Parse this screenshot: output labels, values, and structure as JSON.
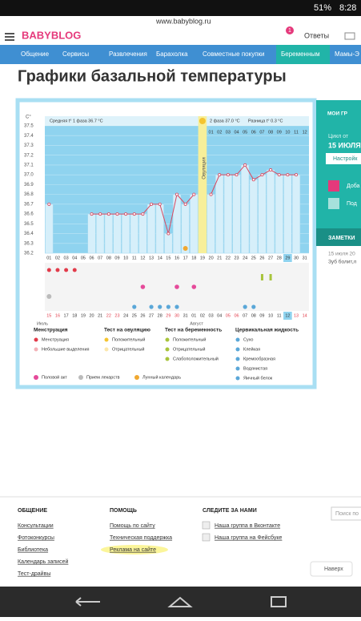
{
  "status_bar": {
    "battery": "51%",
    "time": "8:28"
  },
  "url": "www.babyblog.ru",
  "header": {
    "logo": "BABYBLOG",
    "badge": "1",
    "answers": "Ответы"
  },
  "nav": [
    "Общение",
    "Сервисы",
    "Развлечения",
    "Барахолка",
    "Совместные покупки",
    "Беременным",
    "Мамы-Э"
  ],
  "page_title": "Графики базальной температуры",
  "chart": {
    "y_unit": "C°",
    "phase1": "Средняя t° 1 фаза 36.7 °C",
    "ovulation": "Овуляция",
    "phase2": "2 фаза 37.0 °C",
    "difference": "Разница t° 0.3 °C",
    "phase2_days": [
      "01",
      "02",
      "03",
      "04",
      "05",
      "06",
      "07",
      "08",
      "09",
      "10",
      "11",
      "12"
    ],
    "days": [
      "01",
      "02",
      "03",
      "04",
      "05",
      "06",
      "07",
      "08",
      "09",
      "10",
      "11",
      "12",
      "13",
      "14",
      "15",
      "16",
      "17",
      "18",
      "19",
      "20",
      "21",
      "22",
      "23",
      "24",
      "25",
      "26",
      "27",
      "28",
      "29",
      "30",
      "31"
    ],
    "dates": [
      "15",
      "16",
      "17",
      "18",
      "19",
      "20",
      "21",
      "22",
      "23",
      "24",
      "25",
      "26",
      "27",
      "28",
      "29",
      "30",
      "31",
      "01",
      "02",
      "03",
      "04",
      "05",
      "06",
      "07",
      "08",
      "09",
      "10",
      "11",
      "12",
      "13",
      "14"
    ],
    "months": [
      "Июль",
      "Август"
    ],
    "ylim": [
      36.2,
      37.5
    ],
    "yticks": [
      36.2,
      36.3,
      36.4,
      36.5,
      36.6,
      36.7,
      36.8,
      36.9,
      {
        "value": 37,
        "label": "37.0"
      },
      37.1,
      37.2,
      37.3,
      37.4,
      37.5
    ],
    "temperatures": [
      36.7,
      null,
      null,
      null,
      null,
      36.6,
      36.6,
      36.6,
      36.6,
      36.6,
      36.6,
      36.6,
      36.7,
      36.7,
      36.4,
      36.8,
      36.7,
      36.8,
      null,
      36.8,
      37.0,
      37.0,
      37.0,
      37.1,
      36.95,
      37.0,
      37.05,
      37.0,
      37.0,
      37.0,
      null
    ]
  },
  "legend": {
    "columns": [
      {
        "title": "Менструация",
        "items": [
          "Менструация",
          "Небольшие выделения"
        ]
      },
      {
        "title": "Тест на овуляцию",
        "items": [
          "Положительный",
          "Отрицательный"
        ]
      },
      {
        "title": "Тест на беременность",
        "items": [
          "Положительный",
          "Отрицательный",
          "Слабоположительный"
        ]
      },
      {
        "title": "Цервикальная жидкость",
        "items": [
          "Сухо",
          "Клейкая",
          "Кремообразная",
          "Водянистая",
          "Яичный белок"
        ]
      }
    ],
    "bottom": [
      "Половой акт",
      "Прием лекарств",
      "Лунный календарь"
    ]
  },
  "sidebar": {
    "my_charts": "МОИ ГР",
    "cycle_from": "Цикл от",
    "cycle_date": "15 ИЮЛЯ",
    "settings": "Настройк",
    "add": "Доба",
    "sub": "Под",
    "notes": "ЗАМЕТКИ",
    "note_date": "15 июля 20",
    "note_text": "Зуб болит,л"
  },
  "footer": {
    "columns": [
      {
        "title": "ОБЩЕНИЕ",
        "links": [
          "Консультации",
          "Фотоконкурсы",
          "Библиотека",
          "Календарь записей",
          "Тест-драйвы"
        ]
      },
      {
        "title": "ПОМОЩЬ",
        "links": [
          "Помощь по сайту",
          "Техническая поддержка",
          "Реклама на сайте"
        ]
      },
      {
        "title": "СЛЕДИТЕ ЗА НАМИ",
        "links": [
          "Наша группа в Вконтакте",
          "Наша группа на Фейсбуке"
        ]
      }
    ],
    "search": "Поиск по",
    "top": "Наверх"
  }
}
